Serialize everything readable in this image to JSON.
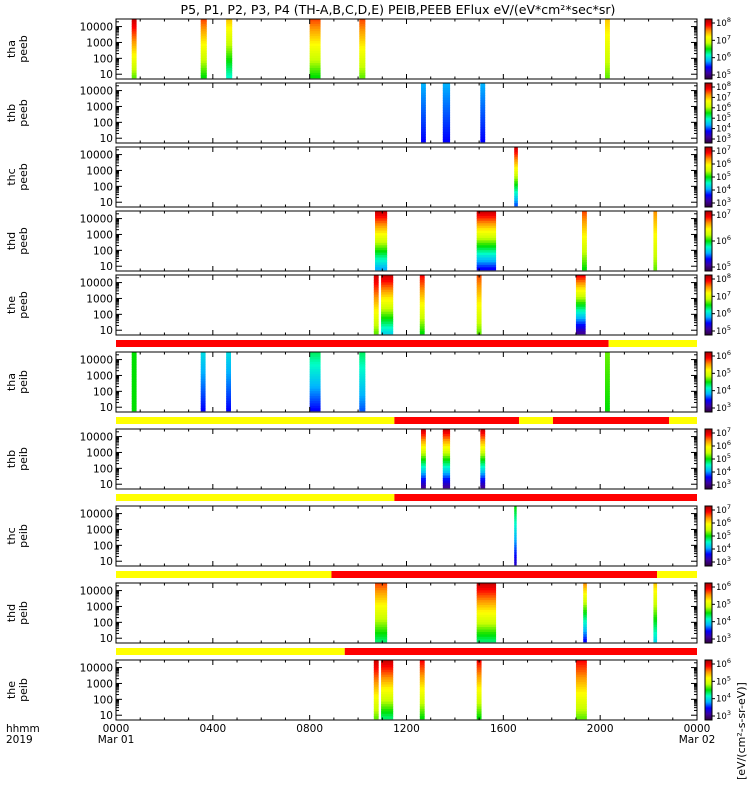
{
  "chart_data": {
    "type": "heatmap",
    "title": "P5, P1, P2, P3, P4 (TH-A,B,C,D,E) PEIB,PEEB EFlux eV/(eV*cm²*sec*sr)",
    "x_axis": {
      "corner_labels": [
        "hhmm",
        "2019"
      ],
      "ticks": [
        {
          "hhmm": "0000",
          "date": "Mar 01",
          "hour": 0
        },
        {
          "hhmm": "0400",
          "date": "",
          "hour": 4
        },
        {
          "hhmm": "0800",
          "date": "",
          "hour": 8
        },
        {
          "hhmm": "1200",
          "date": "",
          "hour": 12
        },
        {
          "hhmm": "1600",
          "date": "",
          "hour": 16
        },
        {
          "hhmm": "2000",
          "date": "",
          "hour": 20
        },
        {
          "hhmm": "0000",
          "date": "Mar 02",
          "hour": 24
        }
      ],
      "range_hours": [
        0,
        24
      ]
    },
    "y_scale": "log",
    "y_range": [
      5,
      30000
    ],
    "y_tick_labels": [
      "10",
      "100",
      "1000",
      "10000"
    ],
    "colorbar_label": "[eV/(cm²-s-sr-eV)]",
    "colorbar_colors": [
      "#30003c",
      "#3c00a0",
      "#0000ff",
      "#00b4ff",
      "#00ffc8",
      "#00e000",
      "#c8ff00",
      "#ffff00",
      "#ff9600",
      "#ff0000",
      "#a00000"
    ],
    "status_bar_colors": {
      "red": "#ff0000",
      "yellow": "#ffff00"
    },
    "panels": [
      {
        "label": [
          "tha",
          "peeb"
        ],
        "colorbar_exponents": [
          "5",
          "6",
          "7",
          "8"
        ],
        "bursts": [
          {
            "start": 0.65,
            "end": 0.85,
            "emin": 6,
            "emax": 30000,
            "low": 0.55,
            "high": 0.95
          },
          {
            "start": 3.5,
            "end": 3.75,
            "emin": 6,
            "emax": 30000,
            "low": 0.5,
            "high": 0.85
          },
          {
            "start": 4.55,
            "end": 4.8,
            "emin": 6,
            "emax": 30000,
            "low": 0.4,
            "high": 0.75
          },
          {
            "start": 8.0,
            "end": 8.45,
            "emin": 6,
            "emax": 30000,
            "low": 0.5,
            "high": 0.85
          },
          {
            "start": 10.05,
            "end": 10.3,
            "emin": 6,
            "emax": 30000,
            "low": 0.55,
            "high": 0.85
          },
          {
            "start": 20.2,
            "end": 20.4,
            "emin": 6,
            "emax": 30000,
            "low": 0.55,
            "high": 0.75
          }
        ]
      },
      {
        "label": [
          "thb",
          "peeb"
        ],
        "colorbar_exponents": [
          "3",
          "4",
          "5",
          "6",
          "7",
          "8"
        ],
        "bursts": [
          {
            "start": 12.6,
            "end": 12.8,
            "emin": 6,
            "emax": 30000,
            "low": 0.2,
            "high": 0.3
          },
          {
            "start": 13.5,
            "end": 13.8,
            "emin": 6,
            "emax": 30000,
            "low": 0.2,
            "high": 0.3
          },
          {
            "start": 15.05,
            "end": 15.25,
            "emin": 6,
            "emax": 30000,
            "low": 0.2,
            "high": 0.3
          }
        ]
      },
      {
        "label": [
          "thc",
          "peeb"
        ],
        "colorbar_exponents": [
          "3",
          "4",
          "5",
          "6",
          "7"
        ],
        "bursts": [
          {
            "start": 16.45,
            "end": 16.6,
            "emin": 6,
            "emax": 30000,
            "low": 0.25,
            "high": 0.95
          }
        ]
      },
      {
        "label": [
          "thd",
          "peeb"
        ],
        "colorbar_exponents": [
          "5",
          "6",
          "7"
        ],
        "bursts": [
          {
            "start": 10.7,
            "end": 11.2,
            "emin": 6,
            "emax": 30000,
            "low": 0.3,
            "high": 0.95
          },
          {
            "start": 14.9,
            "end": 15.7,
            "emin": 6,
            "emax": 30000,
            "low": 0.2,
            "high": 0.95
          },
          {
            "start": 19.25,
            "end": 19.45,
            "emin": 6,
            "emax": 30000,
            "low": 0.5,
            "high": 0.85
          },
          {
            "start": 22.2,
            "end": 22.35,
            "emin": 6,
            "emax": 30000,
            "low": 0.55,
            "high": 0.8
          }
        ]
      },
      {
        "label": [
          "the",
          "peeb"
        ],
        "colorbar_exponents": [
          "5",
          "6",
          "7",
          "8"
        ],
        "bursts": [
          {
            "start": 10.65,
            "end": 10.85,
            "emin": 6,
            "emax": 30000,
            "low": 0.55,
            "high": 0.95
          },
          {
            "start": 10.95,
            "end": 11.45,
            "emin": 6,
            "emax": 30000,
            "low": 0.35,
            "high": 0.95
          },
          {
            "start": 12.55,
            "end": 12.75,
            "emin": 6,
            "emax": 30000,
            "low": 0.5,
            "high": 0.9
          },
          {
            "start": 14.9,
            "end": 15.1,
            "emin": 6,
            "emax": 30000,
            "low": 0.55,
            "high": 0.85
          },
          {
            "start": 19.0,
            "end": 19.4,
            "emin": 6,
            "emax": 30000,
            "low": 0.1,
            "high": 0.9
          }
        ]
      },
      {
        "label": [
          "tha",
          "peib"
        ],
        "colorbar_exponents": [
          "3",
          "4",
          "5",
          "6"
        ],
        "mode_bar": [
          {
            "start": 0,
            "end": 20.35,
            "color": "red"
          },
          {
            "start": 20.35,
            "end": 24,
            "color": "yellow"
          }
        ],
        "bursts": [
          {
            "start": 0.65,
            "end": 0.85,
            "emin": 6,
            "emax": 30000,
            "low": 0.5,
            "high": 0.5
          },
          {
            "start": 3.5,
            "end": 3.7,
            "emin": 6,
            "emax": 30000,
            "low": 0.2,
            "high": 0.35
          },
          {
            "start": 4.55,
            "end": 4.75,
            "emin": 6,
            "emax": 30000,
            "low": 0.2,
            "high": 0.35
          },
          {
            "start": 8.0,
            "end": 8.45,
            "emin": 6,
            "emax": 30000,
            "low": 0.2,
            "high": 0.45
          },
          {
            "start": 10.05,
            "end": 10.3,
            "emin": 6,
            "emax": 30000,
            "low": 0.25,
            "high": 0.45
          },
          {
            "start": 20.2,
            "end": 20.4,
            "emin": 6,
            "emax": 30000,
            "low": 0.5,
            "high": 0.55
          }
        ]
      },
      {
        "label": [
          "thb",
          "peib"
        ],
        "colorbar_exponents": [
          "3",
          "4",
          "5",
          "6",
          "7"
        ],
        "mode_bar": [
          {
            "start": 0,
            "end": 11.5,
            "color": "yellow"
          },
          {
            "start": 11.5,
            "end": 16.65,
            "color": "red"
          },
          {
            "start": 16.65,
            "end": 18.05,
            "color": "yellow"
          },
          {
            "start": 18.05,
            "end": 22.85,
            "color": "red"
          },
          {
            "start": 22.85,
            "end": 24,
            "color": "yellow"
          }
        ],
        "bursts": [
          {
            "start": 12.6,
            "end": 12.8,
            "emin": 6,
            "emax": 30000,
            "low": 0.1,
            "high": 0.95
          },
          {
            "start": 13.5,
            "end": 13.8,
            "emin": 6,
            "emax": 30000,
            "low": 0.1,
            "high": 0.95
          },
          {
            "start": 15.05,
            "end": 15.25,
            "emin": 6,
            "emax": 30000,
            "low": 0.1,
            "high": 0.95
          }
        ]
      },
      {
        "label": [
          "thc",
          "peib"
        ],
        "colorbar_exponents": [
          "3",
          "4",
          "5",
          "6",
          "7"
        ],
        "mode_bar": [
          {
            "start": 0,
            "end": 11.5,
            "color": "yellow"
          },
          {
            "start": 11.5,
            "end": 24,
            "color": "red"
          }
        ],
        "bursts": [
          {
            "start": 16.45,
            "end": 16.55,
            "emin": 6,
            "emax": 30000,
            "low": 0.15,
            "high": 0.5
          }
        ]
      },
      {
        "label": [
          "thd",
          "peib"
        ],
        "colorbar_exponents": [
          "3",
          "4",
          "5",
          "6"
        ],
        "mode_bar": [
          {
            "start": 0,
            "end": 8.9,
            "color": "yellow"
          },
          {
            "start": 8.9,
            "end": 22.35,
            "color": "red"
          },
          {
            "start": 22.35,
            "end": 24,
            "color": "yellow"
          }
        ],
        "bursts": [
          {
            "start": 10.7,
            "end": 11.2,
            "emin": 6,
            "emax": 30000,
            "low": 0.45,
            "high": 0.85
          },
          {
            "start": 14.9,
            "end": 15.7,
            "emin": 6,
            "emax": 30000,
            "low": 0.45,
            "high": 0.95
          },
          {
            "start": 19.3,
            "end": 19.45,
            "emin": 6,
            "emax": 30000,
            "low": 0.2,
            "high": 0.8
          },
          {
            "start": 22.2,
            "end": 22.35,
            "emin": 6,
            "emax": 30000,
            "low": 0.35,
            "high": 0.75
          }
        ]
      },
      {
        "label": [
          "the",
          "peib"
        ],
        "colorbar_exponents": [
          "3",
          "4",
          "5",
          "6"
        ],
        "mode_bar": [
          {
            "start": 0,
            "end": 9.45,
            "color": "yellow"
          },
          {
            "start": 9.45,
            "end": 24,
            "color": "red"
          }
        ],
        "bursts": [
          {
            "start": 10.65,
            "end": 10.85,
            "emin": 6,
            "emax": 30000,
            "low": 0.55,
            "high": 0.95
          },
          {
            "start": 10.95,
            "end": 11.45,
            "emin": 6,
            "emax": 30000,
            "low": 0.45,
            "high": 0.95
          },
          {
            "start": 12.55,
            "end": 12.75,
            "emin": 6,
            "emax": 30000,
            "low": 0.5,
            "high": 0.9
          },
          {
            "start": 14.9,
            "end": 15.1,
            "emin": 6,
            "emax": 30000,
            "low": 0.5,
            "high": 0.9
          },
          {
            "start": 19.0,
            "end": 19.45,
            "emin": 6,
            "emax": 30000,
            "low": 0.55,
            "high": 0.9
          }
        ]
      }
    ]
  }
}
